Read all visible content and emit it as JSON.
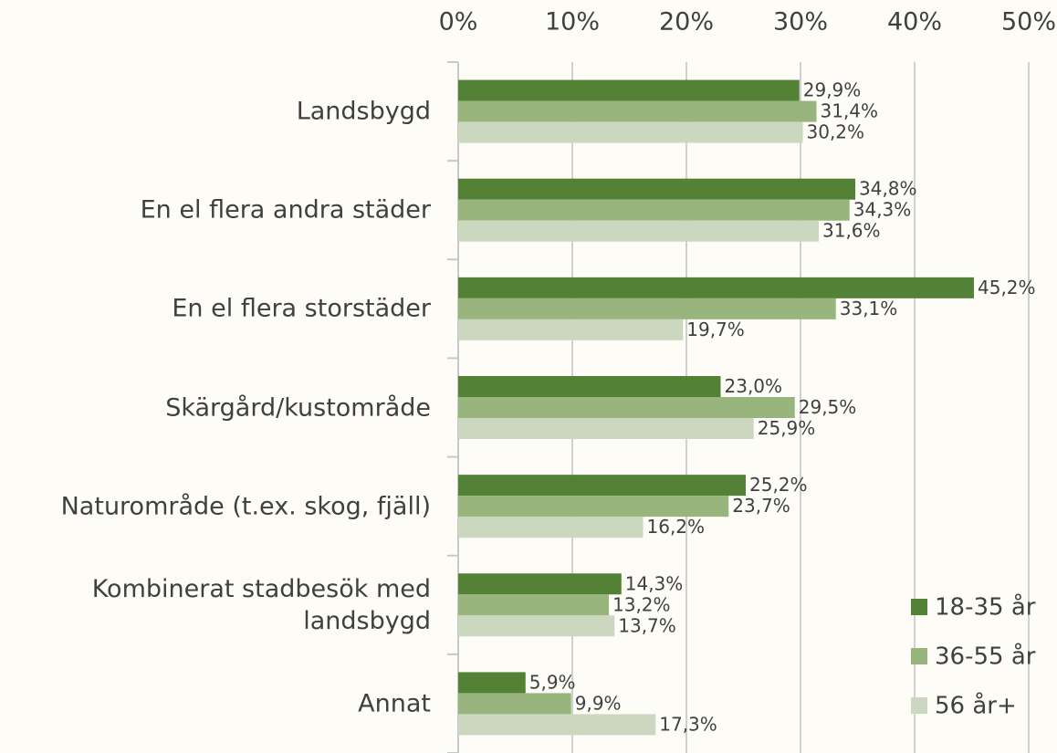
{
  "chart_data": {
    "type": "bar",
    "orientation": "horizontal",
    "categories": [
      "Landsbygd",
      "En el flera andra städer",
      "En el flera storstäder",
      "Skärgård/kustområde",
      "Naturområde (t.ex. skog, fjäll)",
      "Kombinerat stadbesök med landsbygd",
      "Annat"
    ],
    "series": [
      {
        "name": "18-35 år",
        "color": "#538135",
        "values": [
          29.9,
          34.8,
          45.2,
          23.0,
          25.2,
          14.3,
          5.9
        ],
        "value_labels": [
          "29,9%",
          "34,8%",
          "45,2%",
          "23,0%",
          "25,2%",
          "14,3%",
          "5,9%"
        ]
      },
      {
        "name": "36-55 år",
        "color": "#98b57e",
        "values": [
          31.4,
          34.3,
          33.1,
          29.5,
          23.7,
          13.2,
          9.9
        ],
        "value_labels": [
          "31,4%",
          "34,3%",
          "33,1%",
          "29,5%",
          "23,7%",
          "13,2%",
          "9,9%"
        ]
      },
      {
        "name": "56 år+",
        "color": "#cbd8bf",
        "values": [
          30.2,
          31.6,
          19.7,
          25.9,
          16.2,
          13.7,
          17.3
        ],
        "value_labels": [
          "30,2%",
          "31,6%",
          "19,7%",
          "25,9%",
          "16,2%",
          "13,7%",
          "17,3%"
        ]
      }
    ],
    "xlim": [
      0,
      50
    ],
    "xticks": [
      {
        "value": 0,
        "label": "0%"
      },
      {
        "value": 10,
        "label": "10%"
      },
      {
        "value": 20,
        "label": "20%"
      },
      {
        "value": 30,
        "label": "30%"
      },
      {
        "value": 40,
        "label": "40%"
      },
      {
        "value": 50,
        "label": "50%"
      }
    ],
    "grid": true,
    "legend": "bottom-right"
  }
}
